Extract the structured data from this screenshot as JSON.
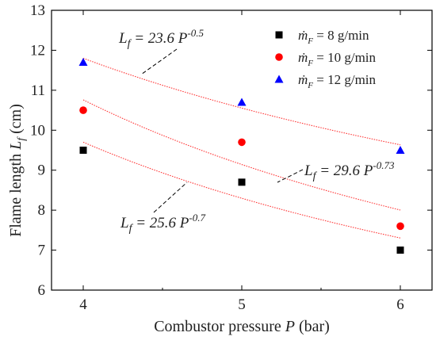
{
  "chart_data": {
    "type": "scatter",
    "xlabel": "Combustor pressure P (bar)",
    "ylabel": "Flame length Lf (cm)",
    "xlim": [
      3.8,
      6.2
    ],
    "ylim": [
      6,
      13
    ],
    "x_ticks": [
      "4",
      "5",
      "6"
    ],
    "y_ticks": [
      "6",
      "7",
      "8",
      "9",
      "10",
      "11",
      "12",
      "13"
    ],
    "grid": false,
    "legend_position": "top-right",
    "series": [
      {
        "name": "ṁF = 8 g/min",
        "legend_prefix": "ṁ",
        "legend_sub": "F",
        "legend_rest": " = 8 g/min",
        "marker": "square",
        "color": "#000000",
        "x": [
          4,
          5,
          6
        ],
        "y": [
          9.5,
          8.7,
          7.0
        ]
      },
      {
        "name": "ṁF = 10 g/min",
        "legend_prefix": "ṁ",
        "legend_sub": "F",
        "legend_rest": " = 10 g/min",
        "marker": "circle",
        "color": "#ff0000",
        "x": [
          4,
          5,
          6
        ],
        "y": [
          10.5,
          9.7,
          7.6
        ]
      },
      {
        "name": "ṁF = 12 g/min",
        "legend_prefix": "ṁ",
        "legend_sub": "F",
        "legend_rest": " = 12 g/min",
        "marker": "triangle",
        "color": "#0000ff",
        "x": [
          4,
          5,
          6
        ],
        "y": [
          11.7,
          10.7,
          9.5
        ]
      }
    ],
    "fits": [
      {
        "label": "Lf = 23.6 P^-0.5",
        "coef": 23.6,
        "exp": -0.5,
        "color": "#ff3333",
        "x_range": [
          4,
          6
        ]
      },
      {
        "label": "Lf = 29.6 P^-0.73",
        "coef": 29.6,
        "exp": -0.73,
        "color": "#ff3333",
        "x_range": [
          4,
          6
        ]
      },
      {
        "label": "Lf = 25.6 P^-0.7",
        "coef": 25.6,
        "exp": -0.7,
        "color": "#ff3333",
        "x_range": [
          4,
          6
        ]
      }
    ],
    "annotations": [
      {
        "main": "L",
        "sub": "f",
        "eq": " = 23.6 ",
        "base": "P",
        "sup": "-0.5"
      },
      {
        "main": "L",
        "sub": "f",
        "eq": " = 29.6 ",
        "base": "P",
        "sup": "-0.73"
      },
      {
        "main": "L",
        "sub": "f",
        "eq": " = 25.6 ",
        "base": "P",
        "sup": "-0.7"
      }
    ],
    "ylabel_parts": {
      "text": "Flame length ",
      "italic": "L",
      "sub": "f",
      "unit": " (cm)"
    },
    "xlabel_parts": {
      "text": "Combustor pressure ",
      "italic": "P",
      "unit": " (bar)"
    }
  }
}
